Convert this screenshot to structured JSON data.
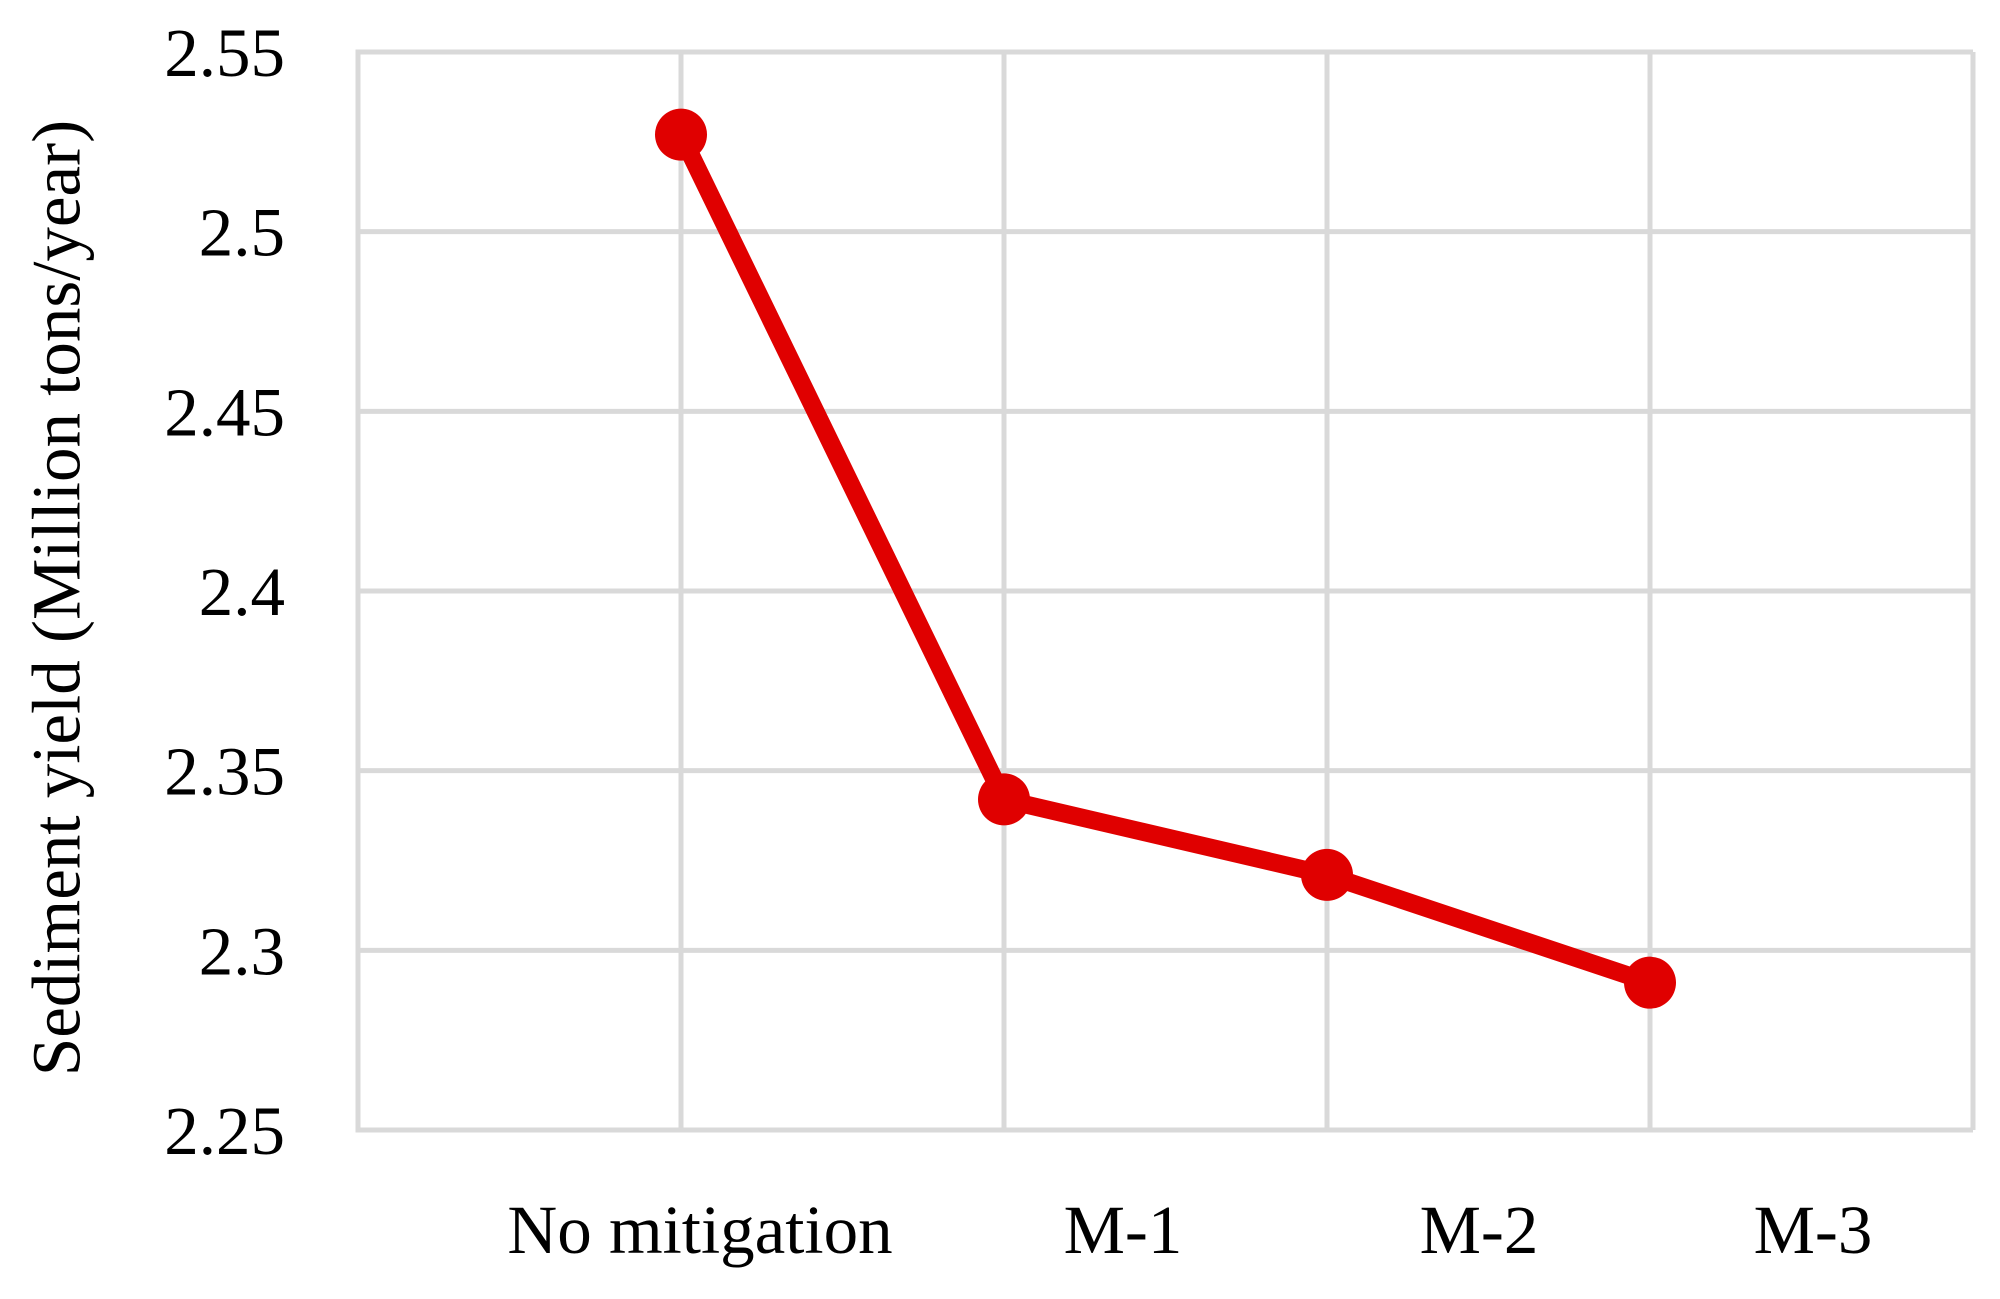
{
  "chart_data": {
    "type": "line",
    "categories": [
      "No mitigation",
      "M-1",
      "M-2",
      "M-3"
    ],
    "series": [
      {
        "name": "Sediment yield",
        "values": [
          2.527,
          2.342,
          2.321,
          2.291
        ]
      }
    ],
    "title": "",
    "xlabel": "",
    "ylabel": "Sediment yield (Million tons/year)",
    "ylim": [
      2.25,
      2.55
    ],
    "ytick_step": 0.05,
    "ytick_labels": [
      "2.55",
      "2.5",
      "2.45",
      "2.4",
      "2.35",
      "2.3",
      "2.25"
    ],
    "grid": true,
    "legend_position": "none",
    "line_color": "#e00000",
    "grid_color": "#d9d9d9",
    "text_color": "#000000",
    "marker": "circle"
  }
}
